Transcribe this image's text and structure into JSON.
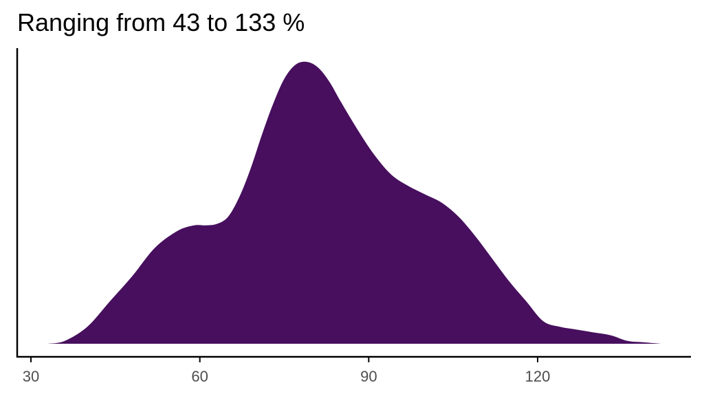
{
  "chart_data": {
    "type": "area",
    "title": "Ranging from 43 to 133 %",
    "xlabel": "",
    "ylabel": "",
    "xlim": [
      30,
      145
    ],
    "ylim": [
      0,
      1
    ],
    "xticks": [
      30,
      60,
      90,
      120
    ],
    "xtick_labels": [
      "30",
      "60",
      "90",
      "120"
    ],
    "grid": false,
    "legend": "none",
    "series": [
      {
        "x": [
          33,
          36,
          40,
          44,
          48,
          52,
          56,
          59,
          61,
          63,
          65,
          67,
          69,
          71,
          73,
          75,
          77,
          79,
          81,
          83,
          85,
          88,
          91,
          94,
          97,
          100,
          103,
          106,
          109,
          112,
          115,
          118,
          121,
          124,
          127,
          130,
          133,
          136,
          139,
          142
        ],
        "y": [
          0.0,
          0.01,
          0.06,
          0.15,
          0.24,
          0.34,
          0.4,
          0.42,
          0.42,
          0.425,
          0.45,
          0.52,
          0.62,
          0.74,
          0.85,
          0.94,
          0.99,
          1.0,
          0.98,
          0.93,
          0.86,
          0.76,
          0.67,
          0.6,
          0.56,
          0.53,
          0.5,
          0.45,
          0.38,
          0.3,
          0.22,
          0.15,
          0.08,
          0.06,
          0.05,
          0.04,
          0.03,
          0.01,
          0.005,
          0.0
        ]
      }
    ]
  },
  "colors": {
    "fill": "#470F5E",
    "axis": "#000000",
    "tick_text": "#4D4D4D"
  }
}
